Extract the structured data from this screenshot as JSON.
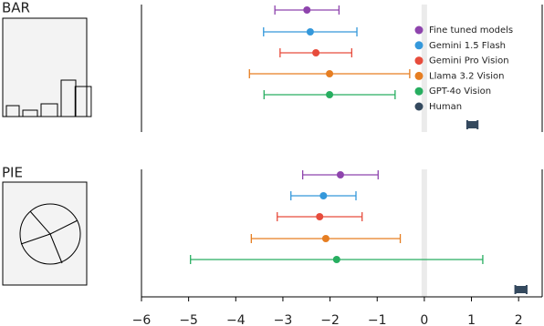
{
  "chart_data": [
    {
      "type": "errorbar",
      "title": "BAR",
      "xlim": [
        -6,
        2.5
      ],
      "legend": "upper right",
      "series": [
        {
          "name": "Fine tuned models",
          "color": "#8e44ad",
          "values": [
            -2.49
          ],
          "errors": [
            0.68
          ]
        },
        {
          "name": "Gemini 1.5 Flash",
          "color": "#3498db",
          "values": [
            -2.42
          ],
          "errors": [
            0.99
          ]
        },
        {
          "name": "Gemini Pro Vision",
          "color": "#e74c3c",
          "values": [
            -2.3
          ],
          "errors": [
            0.76
          ]
        },
        {
          "name": "Llama 3.2 Vision",
          "color": "#e67e22",
          "values": [
            -2.01
          ],
          "errors": [
            1.7
          ]
        },
        {
          "name": "GPT-4o Vision",
          "color": "#27ae60",
          "values": [
            -2.01
          ],
          "errors": [
            1.39
          ]
        },
        {
          "name": "Human",
          "color": "#34495e",
          "values": [
            1.02
          ],
          "errors": [
            0.11
          ]
        }
      ]
    },
    {
      "type": "errorbar",
      "title": "PIE",
      "xlim": [
        -6,
        2.5
      ],
      "xticks": [
        {
          "value": -6,
          "label": "−6"
        },
        {
          "value": -5,
          "label": "−5"
        },
        {
          "value": -4,
          "label": "−4"
        },
        {
          "value": -3,
          "label": "−3"
        },
        {
          "value": -2,
          "label": "−2"
        },
        {
          "value": -1,
          "label": "−1"
        },
        0,
        1,
        2
      ],
      "series": [
        {
          "color": "#8e44ad",
          "values": [
            -1.78
          ],
          "errors": [
            0.8
          ]
        },
        {
          "color": "#3498db",
          "values": [
            -2.14
          ],
          "errors": [
            0.69
          ]
        },
        {
          "color": "#e74c3c",
          "values": [
            -2.22
          ],
          "errors": [
            0.9
          ]
        },
        {
          "color": "#e67e22",
          "values": [
            -2.09
          ],
          "errors": [
            1.58
          ]
        },
        {
          "color": "#27ae60",
          "values": [
            -1.86
          ],
          "errors": [
            3.1
          ]
        },
        {
          "color": "#34495e",
          "values": [
            2.05
          ],
          "errors": [
            0.12
          ]
        }
      ]
    }
  ]
}
